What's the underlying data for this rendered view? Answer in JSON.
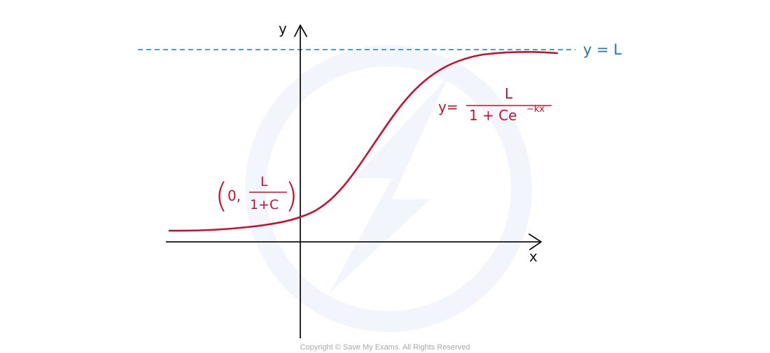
{
  "axes": {
    "x_label": "x",
    "y_label": "y"
  },
  "asymptote": {
    "label": "y = L",
    "color": "#1f78b4"
  },
  "curve": {
    "color": "#c8102e",
    "equation_lhs": "y=",
    "equation_numerator": "L",
    "equation_denominator_base": "1 + Ce",
    "equation_exponent": "−kx"
  },
  "intercept": {
    "open_paren": "(",
    "x_value": "0,",
    "numerator": "L",
    "denominator": "1+C",
    "close_paren": ")"
  },
  "copyright": "Copyright © Save My Exams. All Rights Reserved"
}
